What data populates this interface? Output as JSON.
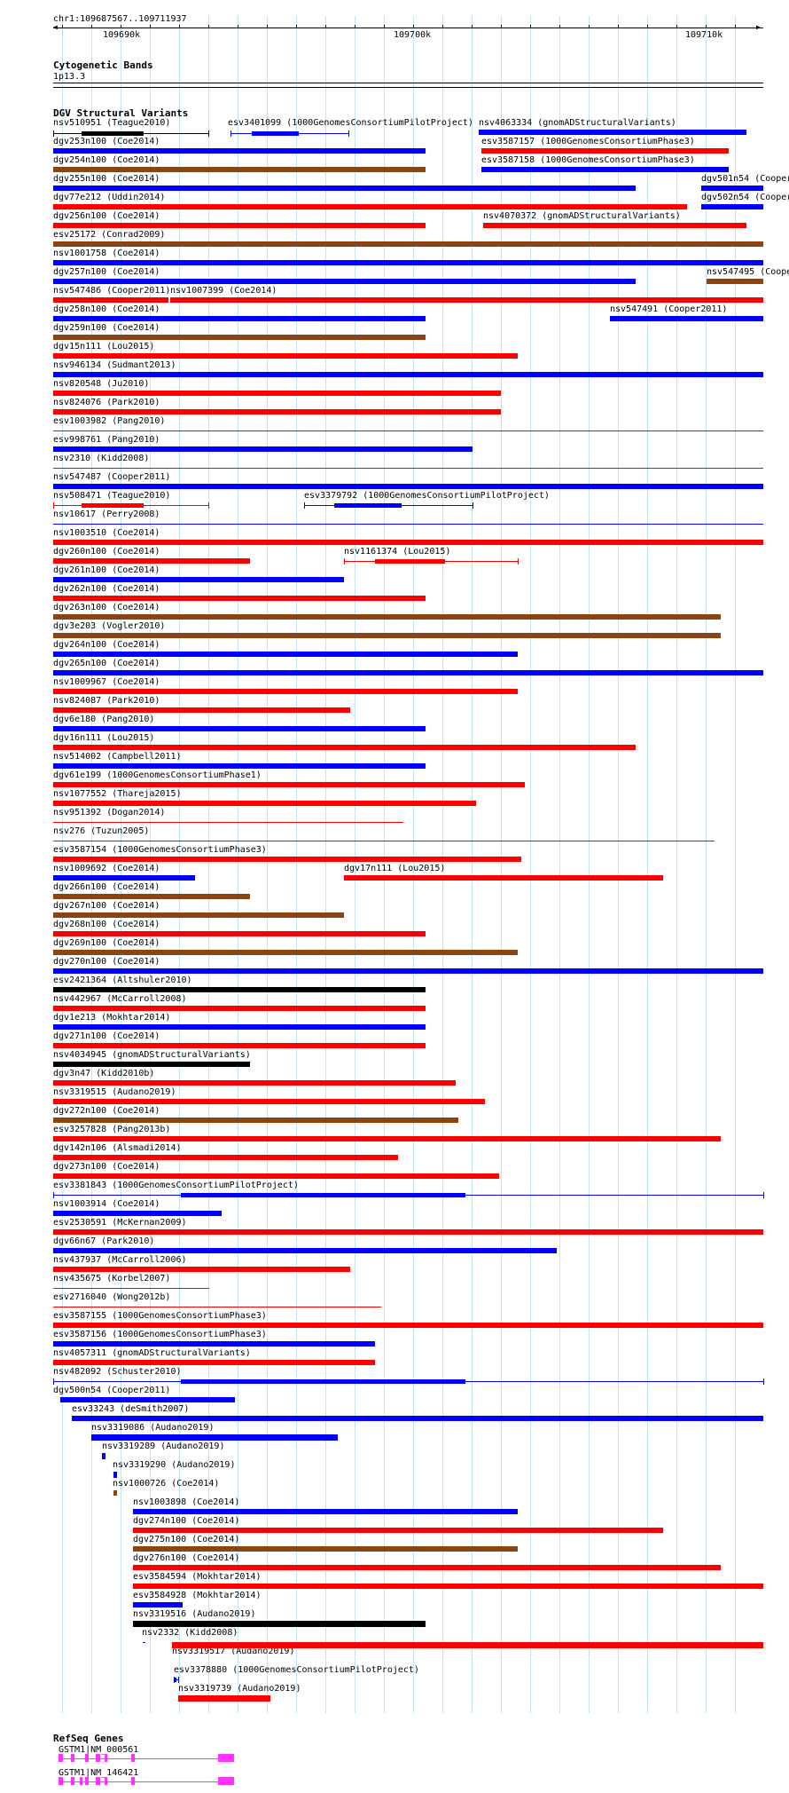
{
  "ruler": {
    "range": "chr1:109687567..109711937",
    "ticks": [
      "109690k",
      "109700k",
      "109710k"
    ]
  },
  "cytobands": {
    "title": "Cytogenetic Bands",
    "band": "1p13.3"
  },
  "dgv": {
    "title": "DGV Structural Variants",
    "colors": {
      "red": "#ff0000",
      "blue": "#0000ff",
      "brown": "#8b4513",
      "black": "#000000"
    },
    "tracks": [
      {
        "name": "nsv510951 (Teague2010)",
        "color": "black",
        "style": "interval"
      },
      {
        "name": "esv3401099 (1000GenomesConsortiumPilotProject)",
        "color": "blue",
        "style": "interval"
      },
      {
        "name": "nsv4063334 (gnomADStructuralVariants)",
        "color": "blue",
        "style": "bar"
      },
      {
        "name": "dgv253n100 (Coe2014)",
        "color": "blue",
        "style": "bar"
      },
      {
        "name": "esv3587157 (1000GenomesConsortiumPhase3)",
        "color": "red",
        "style": "bar"
      },
      {
        "name": "dgv254n100 (Coe2014)",
        "color": "brown",
        "style": "bar"
      },
      {
        "name": "esv3587158 (1000GenomesConsortiumPhase3)",
        "color": "blue",
        "style": "bar"
      },
      {
        "name": "dgv255n100 (Coe2014)",
        "color": "blue",
        "style": "bar"
      },
      {
        "name": "dgv501n54 (Cooper2011)",
        "color": "blue",
        "style": "bar"
      },
      {
        "name": "dgv77e212 (Uddin2014)",
        "color": "red",
        "style": "bar"
      },
      {
        "name": "dgv502n54 (Cooper2011)",
        "color": "blue",
        "style": "bar"
      },
      {
        "name": "dgv256n100 (Coe2014)",
        "color": "red",
        "style": "bar"
      },
      {
        "name": "nsv4070372 (gnomADStructuralVariants)",
        "color": "red",
        "style": "bar"
      },
      {
        "name": "esv25172 (Conrad2009)",
        "color": "brown",
        "style": "bar"
      },
      {
        "name": "nsv1001758 (Coe2014)",
        "color": "blue",
        "style": "bar"
      },
      {
        "name": "dgv257n100 (Coe2014)",
        "color": "blue",
        "style": "bar"
      },
      {
        "name": "nsv547495 (Cooper2011)",
        "color": "brown",
        "style": "bar"
      },
      {
        "name": "nsv547486 (Cooper2011)",
        "color": "red",
        "style": "bar"
      },
      {
        "name": "nsv1007399 (Coe2014)",
        "color": "red",
        "style": "bar"
      },
      {
        "name": "dgv258n100 (Coe2014)",
        "color": "blue",
        "style": "bar"
      },
      {
        "name": "nsv547491 (Cooper2011)",
        "color": "blue",
        "style": "bar"
      },
      {
        "name": "dgv259n100 (Coe2014)",
        "color": "brown",
        "style": "bar"
      },
      {
        "name": "dgv15n111 (Lou2015)",
        "color": "red",
        "style": "bar"
      },
      {
        "name": "nsv946134 (Sudmant2013)",
        "color": "blue",
        "style": "bar"
      },
      {
        "name": "nsv820548 (Ju2010)",
        "color": "red",
        "style": "bar"
      },
      {
        "name": "nsv824076 (Park2010)",
        "color": "red",
        "style": "bar"
      },
      {
        "name": "esv1003982 (Pang2010)",
        "color": "red",
        "style": "thin"
      },
      {
        "name": "esv998761 (Pang2010)",
        "color": "blue",
        "style": "bar"
      },
      {
        "name": "nsv2310 (Kidd2008)",
        "color": "red",
        "style": "thin"
      },
      {
        "name": "nsv547487 (Cooper2011)",
        "color": "blue",
        "style": "bar"
      },
      {
        "name": "nsv508471 (Teague2010)",
        "color": "red",
        "style": "interval"
      },
      {
        "name": "esv3379792 (1000GenomesConsortiumPilotProject)",
        "color": "blue",
        "style": "interval"
      },
      {
        "name": "nsv10617 (Perry2008)",
        "color": "blue",
        "style": "thin"
      },
      {
        "name": "nsv1003510 (Coe2014)",
        "color": "red",
        "style": "bar"
      },
      {
        "name": "dgv260n100 (Coe2014)",
        "color": "red",
        "style": "bar"
      },
      {
        "name": "nsv1161374 (Lou2015)",
        "color": "red",
        "style": "interval"
      },
      {
        "name": "dgv261n100 (Coe2014)",
        "color": "blue",
        "style": "bar"
      },
      {
        "name": "dgv262n100 (Coe2014)",
        "color": "red",
        "style": "bar"
      },
      {
        "name": "dgv263n100 (Coe2014)",
        "color": "brown",
        "style": "bar"
      },
      {
        "name": "dgv3e203 (Vogler2010)",
        "color": "brown",
        "style": "bar"
      },
      {
        "name": "dgv264n100 (Coe2014)",
        "color": "blue",
        "style": "bar"
      },
      {
        "name": "dgv265n100 (Coe2014)",
        "color": "blue",
        "style": "bar"
      },
      {
        "name": "nsv1009967 (Coe2014)",
        "color": "red",
        "style": "bar"
      },
      {
        "name": "nsv824087 (Park2010)",
        "color": "red",
        "style": "bar"
      },
      {
        "name": "dgv6e180 (Pang2010)",
        "color": "blue",
        "style": "bar"
      },
      {
        "name": "dgv16n111 (Lou2015)",
        "color": "red",
        "style": "bar"
      },
      {
        "name": "nsv514002 (Campbell2011)",
        "color": "blue",
        "style": "bar"
      },
      {
        "name": "dgv61e199 (1000GenomesConsortiumPhase1)",
        "color": "red",
        "style": "bar"
      },
      {
        "name": "nsv1077552 (Thareja2015)",
        "color": "red",
        "style": "bar"
      },
      {
        "name": "nsv951392 (Dogan2014)",
        "color": "red",
        "style": "thin"
      },
      {
        "name": "nsv276 (Tuzun2005)",
        "color": "red",
        "style": "thin"
      },
      {
        "name": "esv3587154 (1000GenomesConsortiumPhase3)",
        "color": "red",
        "style": "bar"
      },
      {
        "name": "nsv1009692 (Coe2014)",
        "color": "blue",
        "style": "bar"
      },
      {
        "name": "dgv17n111 (Lou2015)",
        "color": "red",
        "style": "bar"
      },
      {
        "name": "dgv266n100 (Coe2014)",
        "color": "brown",
        "style": "bar"
      },
      {
        "name": "dgv267n100 (Coe2014)",
        "color": "brown",
        "style": "bar"
      },
      {
        "name": "dgv268n100 (Coe2014)",
        "color": "red",
        "style": "bar"
      },
      {
        "name": "dgv269n100 (Coe2014)",
        "color": "brown",
        "style": "bar"
      },
      {
        "name": "dgv270n100 (Coe2014)",
        "color": "blue",
        "style": "bar"
      },
      {
        "name": "esv2421364 (Altshuler2010)",
        "color": "black",
        "style": "bar"
      },
      {
        "name": "nsv442967 (McCarroll2008)",
        "color": "red",
        "style": "bar"
      },
      {
        "name": "dgv1e213 (Mokhtar2014)",
        "color": "blue",
        "style": "bar"
      },
      {
        "name": "dgv271n100 (Coe2014)",
        "color": "red",
        "style": "bar"
      },
      {
        "name": "nsv4034945 (gnomADStructuralVariants)",
        "color": "black",
        "style": "bar"
      },
      {
        "name": "dgv3n47 (Kidd2010b)",
        "color": "red",
        "style": "bar"
      },
      {
        "name": "nsv3319515 (Audano2019)",
        "color": "red",
        "style": "bar"
      },
      {
        "name": "dgv272n100 (Coe2014)",
        "color": "brown",
        "style": "bar"
      },
      {
        "name": "esv3257828 (Pang2013b)",
        "color": "red",
        "style": "bar"
      },
      {
        "name": "dgv142n106 (Alsmadi2014)",
        "color": "red",
        "style": "bar"
      },
      {
        "name": "dgv273n100 (Coe2014)",
        "color": "red",
        "style": "bar"
      },
      {
        "name": "esv3381843 (1000GenomesConsortiumPilotProject)",
        "color": "blue",
        "style": "interval"
      },
      {
        "name": "nsv1003914 (Coe2014)",
        "color": "blue",
        "style": "bar"
      },
      {
        "name": "esv2530591 (McKernan2009)",
        "color": "red",
        "style": "bar"
      },
      {
        "name": "dgv66n67 (Park2010)",
        "color": "blue",
        "style": "bar"
      },
      {
        "name": "nsv437937 (McCarroll2006)",
        "color": "red",
        "style": "bar"
      },
      {
        "name": "nsv435675 (Korbel2007)",
        "color": "red",
        "style": "thin"
      },
      {
        "name": "esv2716040 (Wong2012b)",
        "color": "red",
        "style": "thin"
      },
      {
        "name": "esv3587155 (1000GenomesConsortiumPhase3)",
        "color": "red",
        "style": "bar"
      },
      {
        "name": "esv3587156 (1000GenomesConsortiumPhase3)",
        "color": "blue",
        "style": "bar"
      },
      {
        "name": "nsv4057311 (gnomADStructuralVariants)",
        "color": "red",
        "style": "bar"
      },
      {
        "name": "nsv482092 (Schuster2010)",
        "color": "blue",
        "style": "interval"
      },
      {
        "name": "dgv500n54 (Cooper2011)",
        "color": "blue",
        "style": "bar"
      },
      {
        "name": "esv33243 (deSmith2007)",
        "color": "blue",
        "style": "bar"
      },
      {
        "name": "nsv3319086 (Audano2019)",
        "color": "blue",
        "style": "tick"
      },
      {
        "name": "nsv3319289 (Audano2019)",
        "color": "blue",
        "style": "tick"
      },
      {
        "name": "nsv3319290 (Audano2019)",
        "color": "blue",
        "style": "tick"
      },
      {
        "name": "nsv1000726 (Coe2014)",
        "color": "brown",
        "style": "bar"
      },
      {
        "name": "nsv1003898 (Coe2014)",
        "color": "blue",
        "style": "bar"
      },
      {
        "name": "dgv274n100 (Coe2014)",
        "color": "red",
        "style": "bar"
      },
      {
        "name": "dgv275n100 (Coe2014)",
        "color": "brown",
        "style": "bar"
      },
      {
        "name": "dgv276n100 (Coe2014)",
        "color": "red",
        "style": "bar"
      },
      {
        "name": "esv3584594 (Mokhtar2014)",
        "color": "red",
        "style": "bar"
      },
      {
        "name": "esv3584928 (Mokhtar2014)",
        "color": "blue",
        "style": "bar"
      },
      {
        "name": "nsv3319516 (Audano2019)",
        "color": "black",
        "style": "tick"
      },
      {
        "name": "nsv2332 (Kidd2008)",
        "color": "blue",
        "style": "thin"
      },
      {
        "name": "nsv3319517 (Audano2019)",
        "color": "red",
        "style": "tick"
      },
      {
        "name": "esv3378880 (1000GenomesConsortiumPilotProject)",
        "color": "blue",
        "style": "interval"
      },
      {
        "name": "nsv3319739 (Audano2019)",
        "color": "red",
        "style": "tick"
      }
    ]
  },
  "refseq": {
    "title": "RefSeq Genes",
    "genes": [
      {
        "name": "GSTM1|NM_000561"
      },
      {
        "name": "GSTM1|NM_146421"
      }
    ],
    "color": "#ff33ff"
  }
}
